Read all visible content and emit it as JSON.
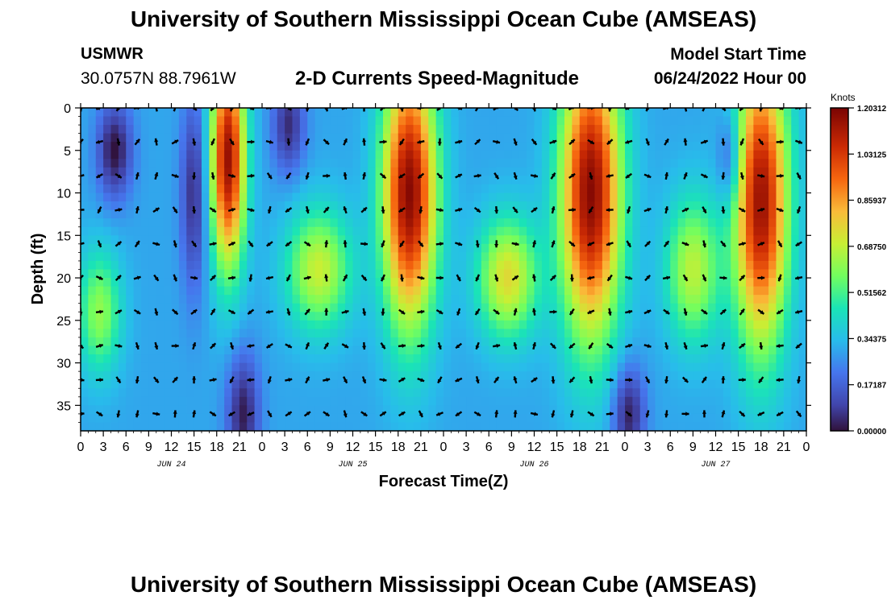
{
  "header": {
    "title": "University of Southern Mississippi Ocean Cube (AMSEAS)",
    "station": "USMWR",
    "coords": "30.0757N  88.7961W",
    "subtitle": "2-D Currents Speed-Magnitude",
    "start_label": "Model Start Time",
    "start_value": "06/24/2022 Hour 00"
  },
  "footer": {
    "title": "University of Southern Mississippi Ocean Cube (AMSEAS)"
  },
  "chart_data": {
    "type": "heatmap",
    "title": "2-D Currents Speed-Magnitude",
    "xlabel": "Forecast Time(Z)",
    "ylabel": "Depth (ft)",
    "x_hours_range": [
      0,
      96
    ],
    "ylim": [
      0,
      38
    ],
    "x_tick_labels": [
      "0",
      "3",
      "6",
      "9",
      "12",
      "15",
      "18",
      "21",
      "0",
      "3",
      "6",
      "9",
      "12",
      "15",
      "18",
      "21",
      "0",
      "3",
      "6",
      "9",
      "12",
      "15",
      "18",
      "21",
      "0",
      "3",
      "6",
      "9",
      "12",
      "15",
      "18",
      "21",
      "0"
    ],
    "y_tick_labels": [
      "0",
      "5",
      "10",
      "15",
      "20",
      "25",
      "30",
      "35"
    ],
    "y_ticks": [
      0,
      5,
      10,
      15,
      20,
      25,
      30,
      35
    ],
    "day_labels": [
      {
        "label": "JUN 24",
        "hour": 12
      },
      {
        "label": "JUN 25",
        "hour": 36
      },
      {
        "label": "JUN 26",
        "hour": 60
      },
      {
        "label": "JUN 27",
        "hour": 84
      }
    ],
    "colorbar": {
      "title": "Knots",
      "tick_labels": [
        "1.20312",
        "1.03125",
        "0.85937",
        "0.68750",
        "0.51562",
        "0.34375",
        "0.17187",
        "0.00000"
      ],
      "ticks": [
        1.20312,
        1.03125,
        0.85937,
        0.6875,
        0.51562,
        0.34375,
        0.17187,
        0.0
      ],
      "range": [
        0.0,
        1.20312
      ]
    },
    "speed_features": [
      {
        "hour": 4.5,
        "depth": 5,
        "peak": 0.0,
        "sh": 1.6,
        "sd": 4
      },
      {
        "hour": 2.5,
        "depth": 24,
        "peak": 0.62,
        "sh": 2.0,
        "sd": 5
      },
      {
        "hour": 19.5,
        "depth": 6,
        "peak": 1.15,
        "sh": 1.6,
        "sd": 9
      },
      {
        "hour": 15,
        "depth": 10,
        "peak": 0.05,
        "sh": 1.2,
        "sd": 8
      },
      {
        "hour": 21.5,
        "depth": 36,
        "peak": 0.02,
        "sh": 1.5,
        "sd": 5
      },
      {
        "hour": 31.5,
        "depth": 19,
        "peak": 0.7,
        "sh": 3.0,
        "sd": 5
      },
      {
        "hour": 27.5,
        "depth": 2,
        "peak": 0.05,
        "sh": 1.5,
        "sd": 4
      },
      {
        "hour": 43.5,
        "depth": 10,
        "peak": 1.18,
        "sh": 2.5,
        "sd": 11
      },
      {
        "hour": 56.5,
        "depth": 20,
        "peak": 0.75,
        "sh": 2.8,
        "sd": 5
      },
      {
        "hour": 67.5,
        "depth": 10,
        "peak": 1.18,
        "sh": 2.8,
        "sd": 12
      },
      {
        "hour": 81,
        "depth": 19,
        "peak": 0.68,
        "sh": 2.5,
        "sd": 6
      },
      {
        "hour": 90,
        "depth": 11,
        "peak": 1.15,
        "sh": 2.5,
        "sd": 12
      },
      {
        "hour": 72.5,
        "depth": 36,
        "peak": 0.02,
        "sh": 1.5,
        "sd": 4
      },
      {
        "hour": 86,
        "depth": 6,
        "peak": 0.08,
        "sh": 1.2,
        "sd": 4
      }
    ],
    "arrow_rows_depth": [
      0,
      4,
      8,
      12,
      16,
      20,
      24,
      28,
      32,
      36
    ]
  },
  "colors": {
    "arrow": "#000000",
    "frame": "#000000"
  }
}
